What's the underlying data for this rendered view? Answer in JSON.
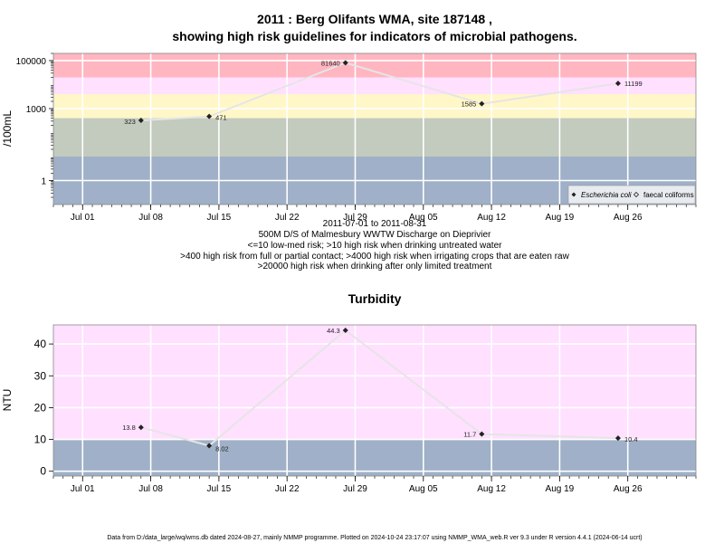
{
  "colors": {
    "band_red": "#ffb6c1",
    "band_pink": "#ffe0ff",
    "band_yellow": "#fff7c8",
    "band_green": "#c2cbbe",
    "band_blue": "#9fb0c8",
    "line": "#e5e5e5",
    "marker": "#222222",
    "grid": "#ffffff"
  },
  "chart_data": [
    {
      "type": "line",
      "title": "2011 : Berg Olifants WMA, site 187148 ,",
      "subtitle": "showing high risk guidelines for indicators of microbial pathogens.",
      "ylabel": "/100mL",
      "y_scale": "log",
      "y_ticks": [
        "1",
        "1000",
        "100000"
      ],
      "x_ticks": [
        "Jul 01",
        "Jul 08",
        "Jul 15",
        "Jul 22",
        "Jul 29",
        "Aug 05",
        "Aug 12",
        "Aug 19",
        "Aug 26"
      ],
      "x_ticks_dates": [
        "2011-07-01",
        "2011-07-08",
        "2011-07-15",
        "2011-07-22",
        "2011-07-29",
        "2011-08-05",
        "2011-08-12",
        "2011-08-19",
        "2011-08-26"
      ],
      "xlim": [
        "2011-06-28",
        "2011-09-02"
      ],
      "ylim": [
        0.1,
        200000
      ],
      "xlabel_lines": [
        "2011-07-01 to 2011-08-31",
        "500M D/S of Malmesbury WWTW Discharge on Dieprivier",
        "<=10 low-med risk; >10 high risk when drinking untreated water",
        ">400 high risk from full or partial contact; >4000 high risk when irrigating crops that are eaten raw",
        ">20000 high risk when drinking after only limited treatment"
      ],
      "bands": [
        {
          "from": 0.1,
          "to": 10,
          "color": "#9fb0c8"
        },
        {
          "from": 10,
          "to": 400,
          "color": "#c2cbbe"
        },
        {
          "from": 400,
          "to": 4000,
          "color": "#fff7c8"
        },
        {
          "from": 4000,
          "to": 20000,
          "color": "#ffe0ff"
        },
        {
          "from": 20000,
          "to": 200000,
          "color": "#ffb6c1"
        }
      ],
      "series": [
        {
          "name": "Escherichia coli",
          "x": [
            "2011-07-07",
            "2011-07-14",
            "2011-07-28",
            "2011-08-11",
            "2011-08-25"
          ],
          "values": [
            323,
            471,
            81640,
            1585,
            11199
          ],
          "labels": [
            "323",
            "471",
            "81640",
            "1585",
            "11199"
          ]
        }
      ],
      "legend_entries": [
        "Escherichia coli",
        "faecal coliforms"
      ],
      "legend_position": "bottom-right"
    },
    {
      "type": "line",
      "title": "Turbidity",
      "ylabel": "NTU",
      "y_scale": "linear",
      "y_ticks": [
        "0",
        "10",
        "20",
        "30",
        "40"
      ],
      "x_ticks": [
        "Jul 01",
        "Jul 08",
        "Jul 15",
        "Jul 22",
        "Jul 29",
        "Aug 05",
        "Aug 12",
        "Aug 19",
        "Aug 26"
      ],
      "x_ticks_dates": [
        "2011-07-01",
        "2011-07-08",
        "2011-07-15",
        "2011-07-22",
        "2011-07-29",
        "2011-08-05",
        "2011-08-12",
        "2011-08-19",
        "2011-08-26"
      ],
      "xlim": [
        "2011-06-28",
        "2011-09-02"
      ],
      "ylim": [
        -1.5,
        46
      ],
      "bands": [
        {
          "from": -1.5,
          "to": 10,
          "color": "#9fb0c8"
        },
        {
          "from": 10,
          "to": 46,
          "color": "#ffe0ff"
        }
      ],
      "series": [
        {
          "x": [
            "2011-07-07",
            "2011-07-14",
            "2011-07-28",
            "2011-08-11",
            "2011-08-25"
          ],
          "values": [
            13.8,
            8.02,
            44.3,
            11.7,
            10.4
          ],
          "labels": [
            "13.8",
            "8.02",
            "44.3",
            "11.7",
            "10.4"
          ]
        }
      ]
    }
  ],
  "footer": "Data from D:/data_large/wq/wms.db dated 2024-08-27, mainly NMMP programme. Plotted on 2024-10-24 23:17:07 using NMMP_WMA_web.R ver 9.3 under R version 4.4.1 (2024-06-14 ucrt)"
}
